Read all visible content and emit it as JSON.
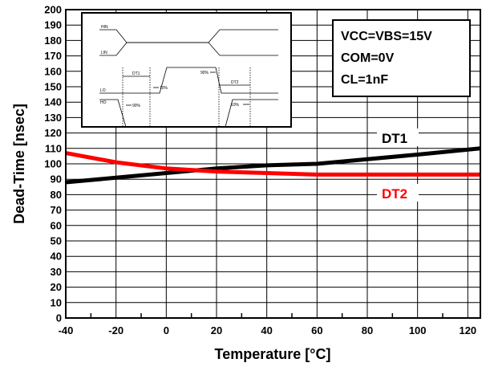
{
  "chart_data": {
    "type": "line",
    "title": "",
    "xlabel": "Temperature [°C]",
    "ylabel": "Dead-Time [nsec]",
    "xlim": [
      -40,
      125
    ],
    "ylim": [
      0,
      200
    ],
    "x_ticks": [
      -40,
      -20,
      0,
      20,
      40,
      60,
      80,
      100,
      120
    ],
    "y_ticks": [
      0,
      10,
      20,
      30,
      40,
      50,
      60,
      70,
      80,
      90,
      100,
      110,
      120,
      130,
      140,
      150,
      160,
      170,
      180,
      190,
      200
    ],
    "grid": true,
    "series": [
      {
        "name": "DT1",
        "color": "#000000",
        "x": [
          -40,
          -20,
          0,
          20,
          40,
          60,
          80,
          100,
          125
        ],
        "y": [
          88,
          91,
          94,
          97,
          99,
          100,
          103,
          106,
          110
        ]
      },
      {
        "name": "DT2",
        "color": "#ff0000",
        "x": [
          -40,
          -20,
          0,
          20,
          40,
          60,
          80,
          100,
          125
        ],
        "y": [
          107,
          101,
          97,
          95,
          94,
          93,
          93,
          93,
          93
        ]
      }
    ],
    "conditions": [
      "VCC=VBS=15V",
      "COM=0V",
      "CL=1nF"
    ],
    "inset": {
      "signals": [
        "HIN",
        "LIN",
        "LO",
        "HO"
      ],
      "markers": [
        "DT1",
        "DT2"
      ],
      "levels": [
        "10%",
        "90%",
        "90%",
        "10%"
      ]
    }
  }
}
